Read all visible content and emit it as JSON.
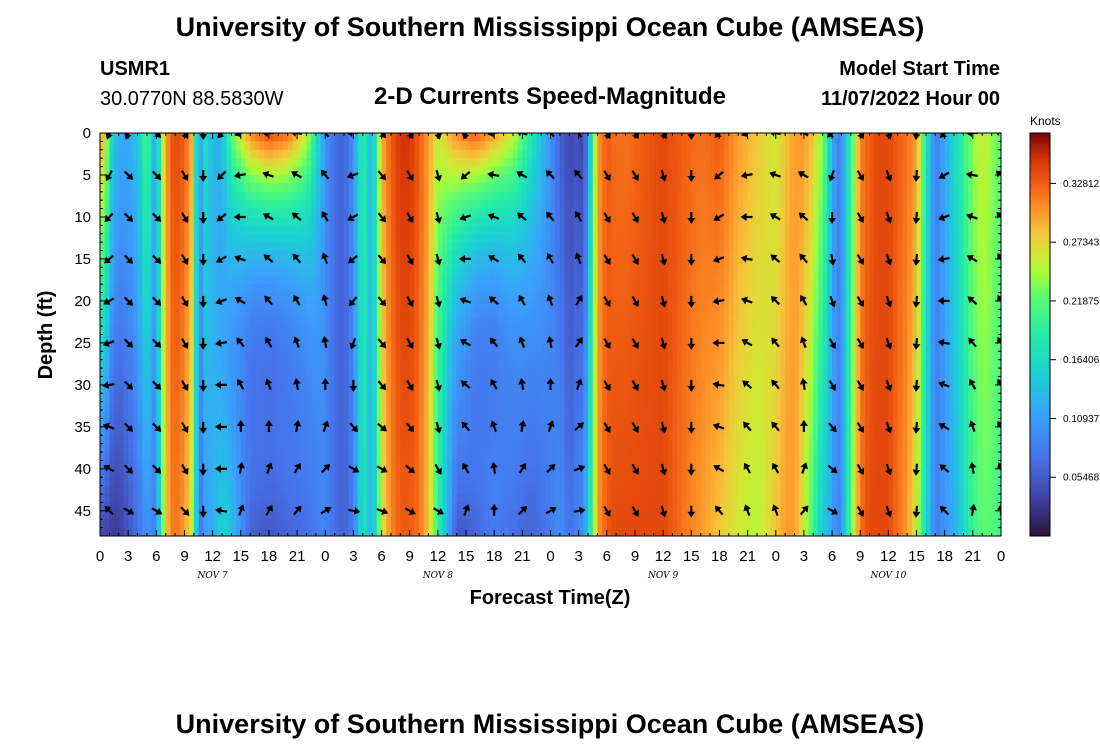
{
  "header": {
    "title": "University of Southern Mississippi Ocean Cube (AMSEAS)",
    "station_id": "USMR1",
    "station_coords": "30.0770N  88.5830W",
    "subtitle": "2-D Currents Speed-Magnitude",
    "model_start_label": "Model Start Time",
    "model_start_value": "11/07/2022 Hour 00"
  },
  "footer": {
    "title": "University of Southern Mississippi Ocean Cube (AMSEAS)"
  },
  "chart_data": {
    "type": "heatmap",
    "title": "2-D Currents Speed-Magnitude",
    "xlabel": "Forecast Time(Z)",
    "ylabel": "Depth (ft)",
    "x_range_hours": [
      0,
      96
    ],
    "y_range_ft": [
      0,
      48
    ],
    "x_tick_labels": [
      "0",
      "3",
      "6",
      "9",
      "12",
      "15",
      "18",
      "21",
      "0",
      "3",
      "6",
      "9",
      "12",
      "15",
      "18",
      "21",
      "0",
      "3",
      "6",
      "9",
      "12",
      "15",
      "18",
      "21",
      "0",
      "3",
      "6",
      "9",
      "12",
      "15",
      "18",
      "21",
      "0"
    ],
    "y_tick_labels": [
      "0",
      "5",
      "10",
      "15",
      "20",
      "25",
      "30",
      "35",
      "40",
      "45"
    ],
    "day_labels": [
      {
        "label": "NOV 7",
        "hour": 12
      },
      {
        "label": "NOV 8",
        "hour": 36
      },
      {
        "label": "NOV 9",
        "hour": 60
      },
      {
        "label": "NOV 10",
        "hour": 84
      }
    ],
    "colorbar": {
      "title": "Knots",
      "range": [
        0.0,
        0.375
      ],
      "tick_labels": [
        "0.32812",
        "0.27343",
        "0.21875",
        "0.16406",
        "0.10937",
        "0.05468"
      ],
      "tick_values": [
        0.32812,
        0.27343,
        0.21875,
        0.16406,
        0.10937,
        0.05468
      ]
    },
    "speed_profile_by_hour": {
      "hours": [
        0,
        0.5,
        1,
        2,
        3,
        4,
        5,
        6,
        6.5,
        7,
        7.5,
        8,
        9,
        10,
        10.5,
        11,
        12,
        13,
        14,
        16,
        18,
        20,
        22,
        23,
        24,
        25,
        26,
        27,
        28,
        29,
        30,
        31,
        32,
        33,
        34,
        35,
        36,
        38,
        40,
        42,
        44,
        46,
        48,
        49,
        50,
        51,
        51.5,
        52,
        53,
        54,
        55,
        56,
        58,
        60,
        62,
        64,
        66,
        68,
        70,
        72,
        73,
        74,
        75,
        76,
        77,
        78,
        78.5,
        79,
        80,
        81,
        82,
        83,
        84,
        85,
        86,
        87,
        88,
        89,
        90,
        91,
        92,
        93,
        94,
        95,
        96
      ],
      "surface_knots": [
        0.28,
        0.3,
        0.18,
        0.12,
        0.12,
        0.14,
        0.22,
        0.1,
        0.24,
        0.29,
        0.33,
        0.34,
        0.33,
        0.28,
        0.06,
        0.18,
        0.13,
        0.13,
        0.22,
        0.31,
        0.34,
        0.32,
        0.26,
        0.18,
        0.1,
        0.07,
        0.06,
        0.1,
        0.2,
        0.12,
        0.29,
        0.33,
        0.35,
        0.35,
        0.33,
        0.3,
        0.26,
        0.31,
        0.33,
        0.3,
        0.26,
        0.18,
        0.1,
        0.06,
        0.04,
        0.05,
        0.03,
        0.1,
        0.3,
        0.33,
        0.32,
        0.32,
        0.33,
        0.34,
        0.33,
        0.32,
        0.33,
        0.3,
        0.28,
        0.26,
        0.28,
        0.3,
        0.3,
        0.28,
        0.24,
        0.13,
        0.08,
        0.09,
        0.2,
        0.31,
        0.33,
        0.34,
        0.34,
        0.33,
        0.32,
        0.3,
        0.18,
        0.08,
        0.12,
        0.16,
        0.2,
        0.24,
        0.26,
        0.24,
        0.22
      ],
      "bottom_knots": [
        0.04,
        0.04,
        0.03,
        0.03,
        0.05,
        0.07,
        0.1,
        0.08,
        0.2,
        0.27,
        0.31,
        0.32,
        0.3,
        0.24,
        0.06,
        0.1,
        0.12,
        0.16,
        0.14,
        0.06,
        0.05,
        0.06,
        0.07,
        0.08,
        0.09,
        0.07,
        0.06,
        0.08,
        0.18,
        0.12,
        0.26,
        0.31,
        0.33,
        0.33,
        0.32,
        0.28,
        0.2,
        0.05,
        0.06,
        0.08,
        0.07,
        0.06,
        0.08,
        0.1,
        0.07,
        0.09,
        0.1,
        0.14,
        0.3,
        0.33,
        0.34,
        0.34,
        0.34,
        0.34,
        0.32,
        0.3,
        0.28,
        0.26,
        0.25,
        0.28,
        0.3,
        0.3,
        0.26,
        0.2,
        0.14,
        0.12,
        0.08,
        0.1,
        0.22,
        0.32,
        0.34,
        0.34,
        0.34,
        0.32,
        0.3,
        0.26,
        0.16,
        0.08,
        0.1,
        0.12,
        0.16,
        0.2,
        0.22,
        0.22,
        0.2
      ],
      "mid_dip_knots_factor": [
        1,
        1,
        1,
        1,
        1,
        1,
        1,
        1,
        1,
        1,
        1,
        1,
        1,
        1,
        1,
        1,
        1,
        0.8,
        0.6,
        0.45,
        0.4,
        0.45,
        0.6,
        0.8,
        1,
        1,
        1,
        1,
        1,
        1,
        1,
        1,
        1,
        1,
        1,
        1,
        0.9,
        0.65,
        0.45,
        0.45,
        0.6,
        0.8,
        1,
        1,
        1,
        1,
        1,
        1,
        1,
        1,
        1,
        1,
        1,
        1,
        1,
        1,
        1,
        1,
        1,
        1,
        1,
        1,
        1,
        1,
        1,
        1,
        1,
        1,
        1,
        1,
        1,
        1,
        1,
        1,
        1,
        1,
        1,
        1,
        1,
        1,
        1,
        1,
        1,
        1,
        1
      ]
    },
    "vector_columns": [
      {
        "hour": 1,
        "dirs_deg": [
          200,
          210,
          225,
          230,
          240,
          250,
          260,
          290,
          300,
          315
        ]
      },
      {
        "hour": 3,
        "dirs_deg": [
          200,
          135,
          135,
          135,
          135,
          135,
          135,
          135,
          135,
          120
        ]
      },
      {
        "hour": 6,
        "dirs_deg": [
          135,
          135,
          135,
          135,
          135,
          135,
          135,
          135,
          135,
          120
        ]
      },
      {
        "hour": 9,
        "dirs_deg": [
          150,
          150,
          150,
          150,
          150,
          150,
          150,
          150,
          150,
          135
        ]
      },
      {
        "hour": 11,
        "dirs_deg": [
          180,
          180,
          180,
          180,
          180,
          180,
          180,
          180,
          180,
          180
        ]
      },
      {
        "hour": 13,
        "dirs_deg": [
          220,
          225,
          230,
          240,
          250,
          260,
          270,
          270,
          270,
          280
        ]
      },
      {
        "hour": 15,
        "dirs_deg": [
          250,
          260,
          270,
          290,
          300,
          320,
          330,
          0,
          10,
          20
        ]
      },
      {
        "hour": 18,
        "dirs_deg": [
          270,
          290,
          300,
          310,
          320,
          330,
          340,
          0,
          20,
          30
        ]
      },
      {
        "hour": 21,
        "dirs_deg": [
          280,
          300,
          310,
          320,
          330,
          340,
          350,
          10,
          30,
          40
        ]
      },
      {
        "hour": 24,
        "dirs_deg": [
          320,
          320,
          330,
          340,
          345,
          350,
          0,
          20,
          45,
          60
        ]
      },
      {
        "hour": 27,
        "dirs_deg": [
          270,
          250,
          240,
          230,
          220,
          200,
          180,
          140,
          120,
          100
        ]
      },
      {
        "hour": 30,
        "dirs_deg": [
          140,
          140,
          140,
          140,
          140,
          140,
          140,
          130,
          120,
          110
        ]
      },
      {
        "hour": 33,
        "dirs_deg": [
          150,
          150,
          150,
          150,
          150,
          150,
          150,
          140,
          130,
          120
        ]
      },
      {
        "hour": 36,
        "dirs_deg": [
          165,
          165,
          165,
          165,
          165,
          165,
          165,
          165,
          150,
          120
        ]
      },
      {
        "hour": 39,
        "dirs_deg": [
          200,
          230,
          250,
          270,
          290,
          300,
          310,
          320,
          330,
          20
        ]
      },
      {
        "hour": 42,
        "dirs_deg": [
          260,
          280,
          290,
          300,
          310,
          320,
          330,
          340,
          350,
          0
        ]
      },
      {
        "hour": 45,
        "dirs_deg": [
          290,
          300,
          310,
          320,
          330,
          340,
          350,
          10,
          30,
          45
        ]
      },
      {
        "hour": 48,
        "dirs_deg": [
          315,
          315,
          320,
          330,
          340,
          350,
          0,
          20,
          45,
          60
        ]
      },
      {
        "hour": 51,
        "dirs_deg": [
          330,
          320,
          330,
          340,
          30,
          35,
          20,
          50,
          70,
          80
        ]
      },
      {
        "hour": 54,
        "dirs_deg": [
          150,
          150,
          150,
          150,
          150,
          150,
          150,
          150,
          150,
          150
        ]
      },
      {
        "hour": 57,
        "dirs_deg": [
          150,
          150,
          150,
          150,
          150,
          150,
          150,
          150,
          150,
          150
        ]
      },
      {
        "hour": 60,
        "dirs_deg": [
          150,
          165,
          165,
          165,
          165,
          165,
          165,
          165,
          165,
          165
        ]
      },
      {
        "hour": 63,
        "dirs_deg": [
          180,
          180,
          180,
          180,
          180,
          180,
          180,
          180,
          180,
          180
        ]
      },
      {
        "hour": 66,
        "dirs_deg": [
          225,
          230,
          240,
          250,
          260,
          270,
          280,
          290,
          300,
          320
        ]
      },
      {
        "hour": 69,
        "dirs_deg": [
          250,
          260,
          270,
          280,
          290,
          300,
          310,
          320,
          330,
          340
        ]
      },
      {
        "hour": 72,
        "dirs_deg": [
          280,
          290,
          300,
          310,
          315,
          320,
          320,
          320,
          330,
          340
        ]
      },
      {
        "hour": 75,
        "dirs_deg": [
          300,
          300,
          310,
          320,
          330,
          340,
          350,
          0,
          20,
          40
        ]
      },
      {
        "hour": 78,
        "dirs_deg": [
          230,
          200,
          180,
          170,
          160,
          150,
          150,
          140,
          130,
          120
        ]
      },
      {
        "hour": 81,
        "dirs_deg": [
          150,
          150,
          150,
          150,
          150,
          150,
          150,
          150,
          150,
          150
        ]
      },
      {
        "hour": 84,
        "dirs_deg": [
          160,
          160,
          160,
          160,
          160,
          160,
          160,
          160,
          160,
          160
        ]
      },
      {
        "hour": 87,
        "dirs_deg": [
          185,
          185,
          185,
          185,
          185,
          185,
          185,
          185,
          185,
          185
        ]
      },
      {
        "hour": 90,
        "dirs_deg": [
          225,
          240,
          250,
          260,
          270,
          280,
          290,
          300,
          310,
          315
        ]
      },
      {
        "hour": 93,
        "dirs_deg": [
          270,
          280,
          290,
          300,
          310,
          320,
          330,
          340,
          350,
          10
        ]
      },
      {
        "hour": 96,
        "dirs_deg": [
          300,
          310,
          320,
          330,
          330,
          330,
          330,
          330,
          340,
          0
        ]
      }
    ]
  }
}
